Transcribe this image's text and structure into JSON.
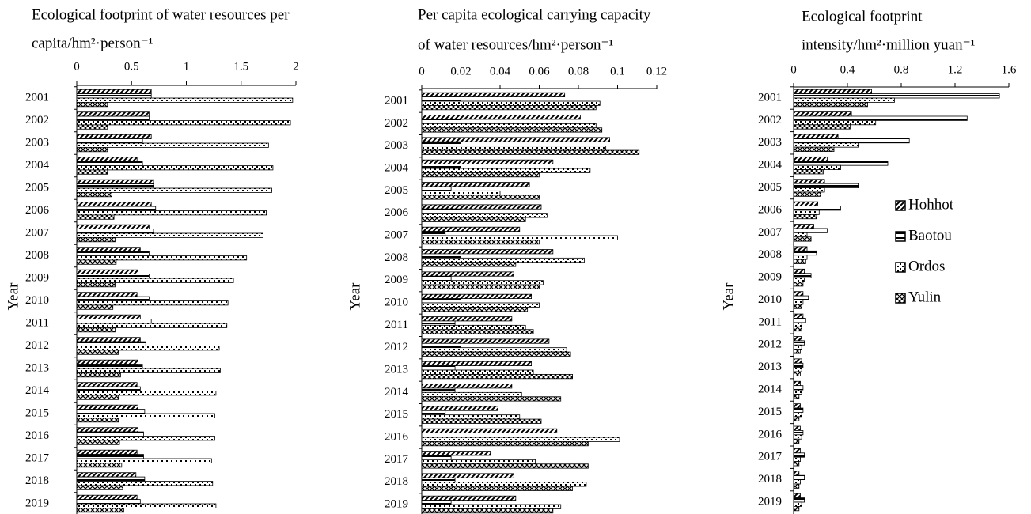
{
  "chart_data": [
    {
      "type": "bar",
      "orientation": "horizontal",
      "title": [
        "Ecological footprint of water resources per",
        "capita/hm²·person⁻¹"
      ],
      "y_label": "Year",
      "categories": [
        "2001",
        "2002",
        "2003",
        "2004",
        "2005",
        "2006",
        "2007",
        "2008",
        "2009",
        "2010",
        "2011",
        "2012",
        "2013",
        "2014",
        "2015",
        "2016",
        "2017",
        "2018",
        "2019"
      ],
      "xlim": [
        0,
        2
      ],
      "xticks": [
        0,
        0.5,
        1,
        1.5,
        2
      ],
      "series": [
        {
          "color": "#000000",
          "values": [
            0.68,
            0.66,
            0.68,
            0.55,
            0.7,
            0.68,
            0.66,
            0.58,
            0.56,
            0.55,
            0.58,
            0.58,
            0.56,
            0.55,
            0.56,
            0.56,
            0.55,
            0.54,
            0.55
          ]
        },
        {
          "color": "#000000",
          "values": [
            0.68,
            0.66,
            0.6,
            0.6,
            0.7,
            0.72,
            0.7,
            0.66,
            0.66,
            0.66,
            0.68,
            0.63,
            0.6,
            0.58,
            0.62,
            0.61,
            0.61,
            0.62,
            0.58
          ]
        },
        {
          "color": "#000000",
          "values": [
            1.97,
            1.95,
            1.75,
            1.79,
            1.78,
            1.73,
            1.7,
            1.55,
            1.43,
            1.38,
            1.37,
            1.3,
            1.31,
            1.27,
            1.26,
            1.26,
            1.23,
            1.24,
            1.27
          ]
        },
        {
          "color": "#000000",
          "values": [
            0.28,
            0.28,
            0.28,
            0.28,
            0.32,
            0.34,
            0.35,
            0.36,
            0.35,
            0.33,
            0.35,
            0.38,
            0.4,
            0.38,
            0.38,
            0.39,
            0.41,
            0.42,
            0.43
          ]
        }
      ]
    },
    {
      "type": "bar",
      "orientation": "horizontal",
      "title": [
        "Per capita ecological carrying capacity",
        "of water resources/hm²·person⁻¹"
      ],
      "y_label": "Year",
      "categories": [
        "2001",
        "2002",
        "2003",
        "2004",
        "2005",
        "2006",
        "2007",
        "2008",
        "2009",
        "2010",
        "2011",
        "2012",
        "2013",
        "2014",
        "2015",
        "2016",
        "2017",
        "2018",
        "2019"
      ],
      "xlim": [
        0,
        0.12
      ],
      "xticks": [
        0,
        0.02,
        0.04,
        0.06,
        0.08,
        0.1,
        0.12
      ],
      "series": [
        {
          "color": "#000000",
          "values": [
            0.073,
            0.081,
            0.096,
            0.067,
            0.055,
            0.061,
            0.05,
            0.067,
            0.047,
            0.056,
            0.046,
            0.065,
            0.056,
            0.046,
            0.039,
            0.069,
            0.035,
            0.047,
            0.048
          ]
        },
        {
          "color": "#000000",
          "values": [
            0.02,
            0.02,
            0.02,
            0.02,
            0.015,
            0.02,
            0.012,
            0.02,
            0.015,
            0.02,
            0.017,
            0.02,
            0.017,
            0.017,
            0.012,
            0.02,
            0.015,
            0.017,
            0.015
          ]
        },
        {
          "color": "#000000",
          "values": [
            0.091,
            0.089,
            0.094,
            0.086,
            0.04,
            0.064,
            0.1,
            0.083,
            0.062,
            0.06,
            0.053,
            0.074,
            0.057,
            0.051,
            0.05,
            0.101,
            0.058,
            0.084,
            0.071
          ]
        },
        {
          "color": "#000000",
          "values": [
            0.089,
            0.092,
            0.111,
            0.06,
            0.06,
            0.053,
            0.06,
            0.048,
            0.06,
            0.054,
            0.057,
            0.076,
            0.077,
            0.071,
            0.061,
            0.085,
            0.085,
            0.077,
            0.067
          ]
        }
      ]
    },
    {
      "type": "bar",
      "orientation": "horizontal",
      "title": [
        "Ecological footprint",
        "intensity/hm²·million yuan⁻¹"
      ],
      "y_label": "Year",
      "categories": [
        "2001",
        "2002",
        "2003",
        "2004",
        "2005",
        "2006",
        "2007",
        "2008",
        "2009",
        "2010",
        "2011",
        "2012",
        "2013",
        "2014",
        "2015",
        "2016",
        "2017",
        "2018",
        "2019"
      ],
      "xlim": [
        0,
        1.6
      ],
      "xticks": [
        0,
        0.4,
        0.8,
        1.2,
        1.6
      ],
      "legend": "right",
      "series": [
        {
          "name": "Hohhot",
          "color": "#000000",
          "values": [
            0.58,
            0.43,
            0.33,
            0.25,
            0.23,
            0.18,
            0.15,
            0.1,
            0.08,
            0.07,
            0.07,
            0.06,
            0.06,
            0.05,
            0.05,
            0.05,
            0.05,
            0.04,
            0.05
          ]
        },
        {
          "name": "Baotou",
          "color": "#000000",
          "values": [
            1.53,
            1.29,
            0.86,
            0.7,
            0.48,
            0.35,
            0.25,
            0.17,
            0.13,
            0.11,
            0.09,
            0.08,
            0.07,
            0.07,
            0.07,
            0.07,
            0.08,
            0.08,
            0.08
          ]
        },
        {
          "name": "Ordos",
          "color": "#000000",
          "values": [
            0.75,
            0.61,
            0.48,
            0.35,
            0.23,
            0.19,
            0.1,
            0.1,
            0.08,
            0.07,
            0.06,
            0.06,
            0.06,
            0.06,
            0.06,
            0.06,
            0.05,
            0.05,
            0.06
          ]
        },
        {
          "name": "Yulin",
          "color": "#000000",
          "values": [
            0.55,
            0.42,
            0.3,
            0.22,
            0.2,
            0.17,
            0.13,
            0.09,
            0.07,
            0.06,
            0.06,
            0.05,
            0.05,
            0.04,
            0.04,
            0.04,
            0.04,
            0.04,
            0.04
          ]
        }
      ]
    }
  ]
}
